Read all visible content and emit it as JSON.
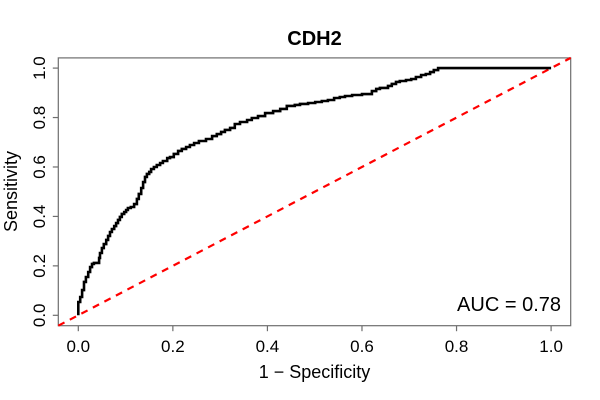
{
  "chart_data": {
    "type": "line",
    "title": "CDH2",
    "xlabel": "1 − Specificity",
    "ylabel": "Sensitivity",
    "xlim": [
      0,
      1
    ],
    "ylim": [
      0,
      1
    ],
    "grid": false,
    "x_ticks": [
      0,
      0.2,
      0.4,
      0.6,
      0.8,
      1.0
    ],
    "x_tick_labels": [
      "0.0",
      "0.2",
      "0.4",
      "0.6",
      "0.8",
      "1.0"
    ],
    "y_ticks": [
      0,
      0.2,
      0.4,
      0.6,
      0.8,
      1.0
    ],
    "y_tick_labels": [
      "0.0",
      "0.2",
      "0.4",
      "0.6",
      "0.8",
      "1.0"
    ],
    "auc": 0.78,
    "annotations": [
      {
        "text": "AUC = 0.78",
        "x": 1.0,
        "y": 0.05,
        "align": "right"
      }
    ],
    "series": [
      {
        "name": "roc-curve",
        "style": "step",
        "color": "#000000",
        "points": [
          [
            0,
            0
          ],
          [
            0.004,
            0.054
          ],
          [
            0.008,
            0.074
          ],
          [
            0.012,
            0.102
          ],
          [
            0.016,
            0.135
          ],
          [
            0.021,
            0.155
          ],
          [
            0.025,
            0.175
          ],
          [
            0.029,
            0.195
          ],
          [
            0.033,
            0.208
          ],
          [
            0.044,
            0.212
          ],
          [
            0.046,
            0.232
          ],
          [
            0.05,
            0.252
          ],
          [
            0.054,
            0.272
          ],
          [
            0.059,
            0.288
          ],
          [
            0.063,
            0.305
          ],
          [
            0.067,
            0.321
          ],
          [
            0.071,
            0.337
          ],
          [
            0.076,
            0.349
          ],
          [
            0.08,
            0.361
          ],
          [
            0.084,
            0.373
          ],
          [
            0.088,
            0.386
          ],
          [
            0.092,
            0.398
          ],
          [
            0.097,
            0.41
          ],
          [
            0.101,
            0.418
          ],
          [
            0.105,
            0.426
          ],
          [
            0.111,
            0.434
          ],
          [
            0.118,
            0.438
          ],
          [
            0.124,
            0.45
          ],
          [
            0.128,
            0.471
          ],
          [
            0.133,
            0.491
          ],
          [
            0.137,
            0.515
          ],
          [
            0.141,
            0.539
          ],
          [
            0.145,
            0.56
          ],
          [
            0.15,
            0.572
          ],
          [
            0.154,
            0.58
          ],
          [
            0.16,
            0.592
          ],
          [
            0.166,
            0.6
          ],
          [
            0.173,
            0.608
          ],
          [
            0.179,
            0.616
          ],
          [
            0.188,
            0.624
          ],
          [
            0.194,
            0.636
          ],
          [
            0.202,
            0.64
          ],
          [
            0.211,
            0.653
          ],
          [
            0.219,
            0.665
          ],
          [
            0.228,
            0.673
          ],
          [
            0.236,
            0.681
          ],
          [
            0.245,
            0.689
          ],
          [
            0.255,
            0.697
          ],
          [
            0.27,
            0.705
          ],
          [
            0.283,
            0.713
          ],
          [
            0.293,
            0.725
          ],
          [
            0.302,
            0.733
          ],
          [
            0.31,
            0.742
          ],
          [
            0.321,
            0.75
          ],
          [
            0.331,
            0.758
          ],
          [
            0.342,
            0.774
          ],
          [
            0.357,
            0.782
          ],
          [
            0.367,
            0.79
          ],
          [
            0.38,
            0.798
          ],
          [
            0.395,
            0.806
          ],
          [
            0.412,
            0.818
          ],
          [
            0.427,
            0.826
          ],
          [
            0.441,
            0.835
          ],
          [
            0.458,
            0.847
          ],
          [
            0.469,
            0.851
          ],
          [
            0.486,
            0.855
          ],
          [
            0.501,
            0.859
          ],
          [
            0.515,
            0.863
          ],
          [
            0.528,
            0.867
          ],
          [
            0.541,
            0.871
          ],
          [
            0.553,
            0.879
          ],
          [
            0.564,
            0.883
          ],
          [
            0.579,
            0.887
          ],
          [
            0.6,
            0.891
          ],
          [
            0.621,
            0.895
          ],
          [
            0.63,
            0.907
          ],
          [
            0.638,
            0.916
          ],
          [
            0.655,
            0.92
          ],
          [
            0.663,
            0.928
          ],
          [
            0.672,
            0.936
          ],
          [
            0.68,
            0.944
          ],
          [
            0.693,
            0.948
          ],
          [
            0.704,
            0.952
          ],
          [
            0.714,
            0.956
          ],
          [
            0.725,
            0.964
          ],
          [
            0.735,
            0.972
          ],
          [
            0.744,
            0.976
          ],
          [
            0.752,
            0.984
          ],
          [
            0.761,
            0.992
          ],
          [
            0.769,
            1.0
          ],
          [
            0.78,
            1.0
          ],
          [
            1.0,
            1.0
          ]
        ]
      },
      {
        "name": "chance-diagonal",
        "style": "dashed",
        "color": "#FF0000",
        "points": [
          [
            0,
            0
          ],
          [
            1,
            1
          ]
        ]
      }
    ],
    "colors": {
      "curve": "#000000",
      "diagonal": "#FF0000",
      "frame": "#6e6e6e",
      "background": "#ffffff"
    }
  }
}
